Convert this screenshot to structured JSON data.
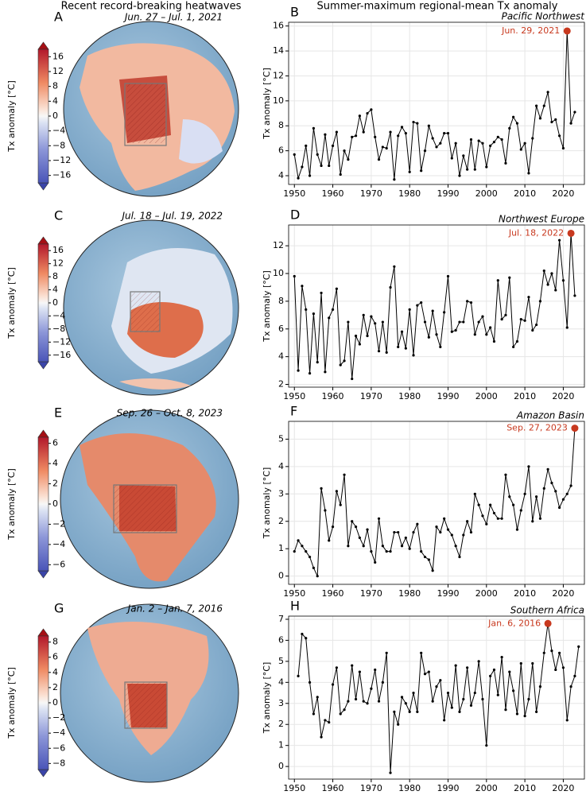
{
  "left_title": "Recent record-breaking heatwaves",
  "right_title": "Summer-maximum regional-mean Tx anomaly",
  "maps": [
    {
      "letter": "A",
      "date": "Jun. 27 – Jul. 1, 2021",
      "cbar_label": "Tx anomaly [°C]",
      "cbar_lim": [
        -18,
        18
      ],
      "cbar_ticks": [
        16,
        12,
        8,
        4,
        0,
        {
          "value": -4,
          "label": "−4"
        },
        {
          "value": -8,
          "label": "−8"
        },
        {
          "value": -12,
          "label": "−12"
        },
        {
          "value": -16,
          "label": "−16"
        }
      ]
    },
    {
      "letter": "C",
      "date": "Jul. 18 – Jul. 19, 2022",
      "cbar_label": "Tx anomaly [°C]",
      "cbar_lim": [
        -18,
        18
      ],
      "cbar_ticks": [
        16,
        12,
        8,
        4,
        0,
        {
          "value": -4,
          "label": "−4"
        },
        {
          "value": -8,
          "label": "−8"
        },
        {
          "value": -12,
          "label": "−12"
        },
        {
          "value": -16,
          "label": "−16"
        }
      ]
    },
    {
      "letter": "E",
      "date": "Sep. 26 – Oct. 8, 2023",
      "cbar_label": "Tx anomaly [°C]",
      "cbar_lim": [
        -6.6,
        6.6
      ],
      "cbar_ticks": [
        6,
        4,
        2,
        0,
        {
          "value": -2,
          "label": "−2"
        },
        {
          "value": -4,
          "label": "−4"
        },
        {
          "value": -6,
          "label": "−6"
        }
      ]
    },
    {
      "letter": "G",
      "date": "Jan. 2 – Jan. 7, 2016",
      "cbar_label": "Tx anomaly [°C]",
      "cbar_lim": [
        -8.8,
        8.8
      ],
      "cbar_ticks": [
        8,
        6,
        4,
        2,
        0,
        {
          "value": -2,
          "label": "−2"
        },
        {
          "value": -4,
          "label": "−4"
        },
        {
          "value": -6,
          "label": "−6"
        },
        {
          "value": -8,
          "label": "−8"
        }
      ]
    }
  ],
  "chart_data": [
    {
      "type": "line",
      "letter": "B",
      "title": "Pacific Northwest",
      "ylabel": "Tx anomaly [°C]",
      "annotation": "Jun. 29, 2021",
      "highlight_color": "#c8391f",
      "color": "#000000",
      "grid": true,
      "x": [
        1950,
        1951,
        1952,
        1953,
        1954,
        1955,
        1956,
        1957,
        1958,
        1959,
        1960,
        1961,
        1962,
        1963,
        1964,
        1965,
        1966,
        1967,
        1968,
        1969,
        1970,
        1971,
        1972,
        1973,
        1974,
        1975,
        1976,
        1977,
        1978,
        1979,
        1980,
        1981,
        1982,
        1983,
        1984,
        1985,
        1986,
        1987,
        1988,
        1989,
        1990,
        1991,
        1992,
        1993,
        1994,
        1995,
        1996,
        1997,
        1998,
        1999,
        2000,
        2001,
        2002,
        2003,
        2004,
        2005,
        2006,
        2007,
        2008,
        2009,
        2010,
        2011,
        2012,
        2013,
        2014,
        2015,
        2016,
        2017,
        2018,
        2019,
        2020,
        2021,
        2022,
        2023
      ],
      "values": [
        5.7,
        3.8,
        4.7,
        6.4,
        4.0,
        7.8,
        5.7,
        4.8,
        7.3,
        4.8,
        6.4,
        7.5,
        4.1,
        6.0,
        5.3,
        7.1,
        7.2,
        8.8,
        7.5,
        9.0,
        9.3,
        7.1,
        5.3,
        6.3,
        6.2,
        7.5,
        3.7,
        7.2,
        7.9,
        7.4,
        4.3,
        8.3,
        8.2,
        4.4,
        6.0,
        8.0,
        7.0,
        6.3,
        6.6,
        7.4,
        7.4,
        5.4,
        6.6,
        4.0,
        5.6,
        4.5,
        6.9,
        4.5,
        6.8,
        6.6,
        4.7,
        6.4,
        6.7,
        7.1,
        6.9,
        5.0,
        7.8,
        8.7,
        8.2,
        6.1,
        6.6,
        4.2,
        7.0,
        9.6,
        8.6,
        9.6,
        10.7,
        8.3,
        8.5,
        7.2,
        6.2,
        15.6,
        8.2,
        9.1
      ],
      "xlim": [
        1948.5,
        2025.5
      ],
      "xticks": [
        1950,
        1960,
        1970,
        1980,
        1990,
        2000,
        2010,
        2020
      ],
      "ylim": [
        3.3,
        16.3
      ],
      "yticks": [
        4,
        6,
        8,
        10,
        12,
        14,
        16
      ]
    },
    {
      "type": "line",
      "letter": "D",
      "title": "Northwest Europe",
      "ylabel": "Tx anomaly [°C]",
      "annotation": "Jul. 18, 2022",
      "highlight_color": "#c8391f",
      "color": "#000000",
      "grid": true,
      "x": [
        1950,
        1951,
        1952,
        1953,
        1954,
        1955,
        1956,
        1957,
        1958,
        1959,
        1960,
        1961,
        1962,
        1963,
        1964,
        1965,
        1966,
        1967,
        1968,
        1969,
        1970,
        1971,
        1972,
        1973,
        1974,
        1975,
        1976,
        1977,
        1978,
        1979,
        1980,
        1981,
        1982,
        1983,
        1984,
        1985,
        1986,
        1987,
        1988,
        1989,
        1990,
        1991,
        1992,
        1993,
        1994,
        1995,
        1996,
        1997,
        1998,
        1999,
        2000,
        2001,
        2002,
        2003,
        2004,
        2005,
        2006,
        2007,
        2008,
        2009,
        2010,
        2011,
        2012,
        2013,
        2014,
        2015,
        2016,
        2017,
        2018,
        2019,
        2020,
        2021,
        2022,
        2023
      ],
      "values": [
        9.8,
        3.0,
        9.1,
        7.4,
        2.8,
        7.1,
        3.6,
        8.6,
        2.9,
        6.8,
        7.4,
        8.9,
        3.4,
        3.7,
        6.5,
        2.4,
        5.5,
        4.9,
        7.0,
        5.5,
        6.9,
        6.4,
        4.4,
        6.5,
        4.3,
        9.0,
        10.5,
        4.7,
        5.8,
        4.6,
        7.4,
        4.1,
        7.7,
        7.9,
        6.5,
        5.4,
        7.3,
        5.6,
        4.7,
        7.2,
        9.8,
        5.8,
        5.9,
        6.5,
        6.5,
        8.0,
        7.9,
        5.6,
        6.5,
        6.9,
        5.6,
        6.1,
        5.1,
        9.5,
        6.7,
        7.0,
        9.7,
        4.7,
        5.1,
        6.7,
        6.6,
        8.3,
        5.9,
        6.3,
        8.0,
        10.2,
        9.2,
        10.0,
        8.8,
        12.4,
        9.5,
        6.1,
        12.9,
        8.4
      ],
      "xlim": [
        1948.5,
        2025.5
      ],
      "xticks": [
        1950,
        1960,
        1970,
        1980,
        1990,
        2000,
        2010,
        2020
      ],
      "ylim": [
        1.8,
        13.5
      ],
      "yticks": [
        2,
        4,
        6,
        8,
        10,
        12
      ]
    },
    {
      "type": "line",
      "letter": "F",
      "title": "Amazon Basin",
      "ylabel": "Tx anomaly [°C]",
      "annotation": "Sep. 27, 2023",
      "highlight_color": "#c8391f",
      "color": "#000000",
      "grid": true,
      "x": [
        1950,
        1951,
        1952,
        1953,
        1954,
        1955,
        1956,
        1957,
        1958,
        1959,
        1960,
        1961,
        1962,
        1963,
        1964,
        1965,
        1966,
        1967,
        1968,
        1969,
        1970,
        1971,
        1972,
        1973,
        1974,
        1975,
        1976,
        1977,
        1978,
        1979,
        1980,
        1981,
        1982,
        1983,
        1984,
        1985,
        1986,
        1987,
        1988,
        1989,
        1990,
        1991,
        1992,
        1993,
        1994,
        1995,
        1996,
        1997,
        1998,
        1999,
        2000,
        2001,
        2002,
        2003,
        2004,
        2005,
        2006,
        2007,
        2008,
        2009,
        2010,
        2011,
        2012,
        2013,
        2014,
        2015,
        2016,
        2017,
        2018,
        2019,
        2020,
        2021,
        2022,
        2023
      ],
      "values": [
        0.9,
        1.3,
        1.1,
        0.9,
        0.7,
        0.3,
        0.0,
        3.2,
        2.4,
        1.3,
        1.8,
        3.1,
        2.6,
        3.7,
        1.1,
        2.0,
        1.8,
        1.4,
        1.1,
        1.7,
        0.9,
        0.5,
        2.1,
        1.1,
        0.9,
        0.9,
        1.6,
        1.6,
        1.1,
        1.4,
        1.0,
        1.6,
        1.9,
        0.9,
        0.7,
        0.6,
        0.2,
        1.8,
        1.6,
        2.1,
        1.7,
        1.5,
        1.1,
        0.7,
        1.5,
        2.0,
        1.6,
        3.0,
        2.6,
        2.2,
        1.9,
        2.6,
        2.3,
        2.1,
        2.1,
        3.7,
        2.9,
        2.6,
        1.7,
        2.4,
        3.0,
        4.0,
        2.0,
        2.9,
        2.1,
        3.2,
        3.9,
        3.4,
        3.1,
        2.5,
        2.8,
        3.0,
        3.3,
        5.4
      ],
      "xlim": [
        1948.5,
        2025.5
      ],
      "xticks": [
        1950,
        1960,
        1970,
        1980,
        1990,
        2000,
        2010,
        2020
      ],
      "ylim": [
        -0.3,
        5.65
      ],
      "yticks": [
        0,
        1,
        2,
        3,
        4,
        5
      ]
    },
    {
      "type": "line",
      "letter": "H",
      "title": "Southern Africa",
      "ylabel": "Tx anomaly [°C]",
      "annotation": "Jan. 6, 2016",
      "highlight_color": "#c8391f",
      "color": "#000000",
      "grid": true,
      "x": [
        1951,
        1952,
        1953,
        1954,
        1955,
        1956,
        1957,
        1958,
        1959,
        1960,
        1961,
        1962,
        1963,
        1964,
        1965,
        1966,
        1967,
        1968,
        1969,
        1970,
        1971,
        1972,
        1973,
        1974,
        1975,
        1976,
        1977,
        1978,
        1979,
        1980,
        1981,
        1982,
        1983,
        1984,
        1985,
        1986,
        1987,
        1988,
        1989,
        1990,
        1991,
        1992,
        1993,
        1994,
        1995,
        1996,
        1997,
        1998,
        1999,
        2000,
        2001,
        2002,
        2003,
        2004,
        2005,
        2006,
        2007,
        2008,
        2009,
        2010,
        2011,
        2012,
        2013,
        2014,
        2015,
        2016,
        2017,
        2018,
        2019,
        2020,
        2021,
        2022,
        2023,
        2024
      ],
      "values": [
        4.3,
        6.3,
        6.1,
        4.0,
        2.5,
        3.3,
        1.4,
        2.2,
        2.1,
        3.9,
        4.7,
        2.5,
        2.7,
        3.1,
        4.8,
        3.2,
        4.5,
        3.1,
        3.0,
        3.7,
        4.6,
        3.1,
        4.0,
        5.4,
        -0.3,
        2.6,
        2.0,
        3.3,
        3.0,
        2.6,
        3.5,
        2.6,
        5.4,
        4.4,
        4.5,
        3.1,
        3.8,
        4.1,
        2.2,
        3.5,
        2.8,
        4.8,
        2.6,
        3.2,
        4.7,
        2.9,
        3.5,
        5.0,
        3.2,
        1.0,
        4.3,
        4.6,
        3.4,
        5.2,
        2.7,
        4.5,
        3.6,
        2.5,
        4.9,
        2.4,
        3.2,
        4.9,
        2.6,
        3.8,
        5.4,
        6.8,
        5.5,
        4.6,
        5.4,
        4.7,
        2.2,
        3.8,
        4.3,
        5.7
      ],
      "xlim": [
        1948.5,
        2025.5
      ],
      "xticks": [
        1950,
        1960,
        1970,
        1980,
        1990,
        2000,
        2010,
        2020
      ],
      "ylim": [
        -0.6,
        7.15
      ],
      "yticks": [
        0,
        1,
        2,
        3,
        4,
        5,
        6,
        7
      ]
    }
  ]
}
